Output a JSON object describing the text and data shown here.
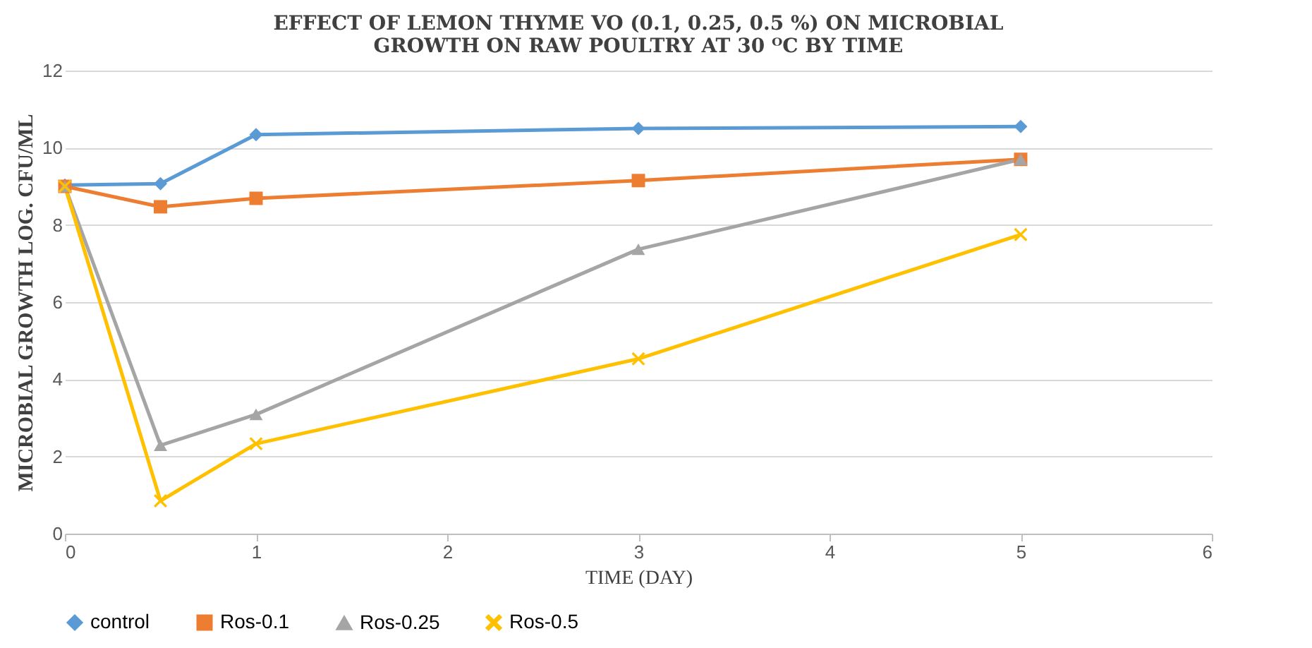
{
  "chart_data": {
    "type": "line",
    "title": [
      "EFFECT OF LEMON THYME VO (0.1, 0.25, 0.5 %) ON MICROBIAL",
      "GROWTH ON RAW POULTRY AT 30 ᴼC BY TIME"
    ],
    "xlabel": "TIME (DAY)",
    "ylabel": "MICROBIAL GROWTH LOG. CFU/ML",
    "x": [
      0,
      0.5,
      1,
      3,
      5
    ],
    "series": [
      {
        "name": "control",
        "color": "#5b9bd5",
        "marker": "diamond",
        "values": [
          9.03,
          9.07,
          10.34,
          10.5,
          10.55
        ]
      },
      {
        "name": "Ros-0.1",
        "color": "#ed7d31",
        "marker": "square",
        "values": [
          9.0,
          8.47,
          8.69,
          9.15,
          9.7
        ]
      },
      {
        "name": "Ros-0.25",
        "color": "#a5a5a5",
        "marker": "triangle",
        "values": [
          9.0,
          2.29,
          3.09,
          7.37,
          9.7
        ]
      },
      {
        "name": "Ros-0.5",
        "color": "#ffc000",
        "marker": "cross",
        "values": [
          9.0,
          0.85,
          2.33,
          4.53,
          7.75
        ]
      }
    ],
    "xlim": [
      0,
      6
    ],
    "xticks": [
      0,
      1,
      2,
      3,
      4,
      5,
      6
    ],
    "ylim": [
      0,
      12
    ],
    "yticks": [
      0,
      2,
      4,
      6,
      8,
      10,
      12
    ],
    "grid": "y",
    "legend": "bottom",
    "line_style": "solid"
  }
}
